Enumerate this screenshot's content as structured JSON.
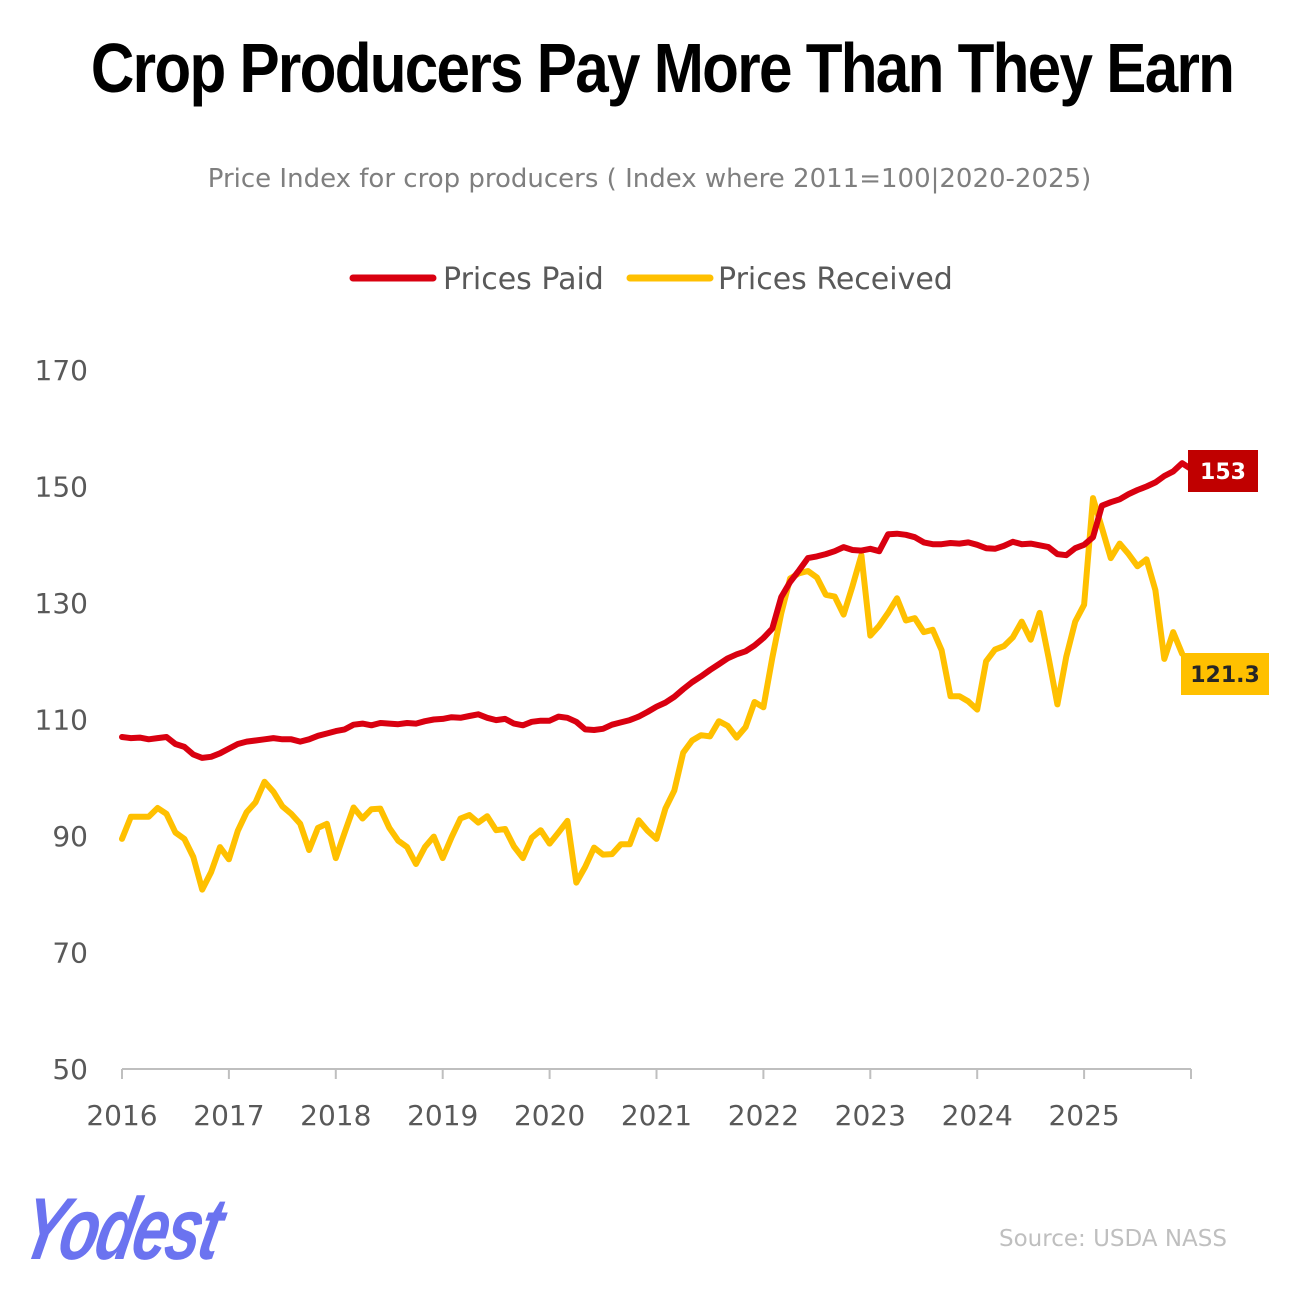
{
  "chart_data": {
    "type": "line",
    "title": "Crop Producers Pay More Than They Earn",
    "subtitle": "Price Index for crop producers ( Index where 2011=100|2020-2025)",
    "x_tick_labels": [
      "2016",
      "2017",
      "2018",
      "2019",
      "2020",
      "2021",
      "2022",
      "2023",
      "2024",
      "2025"
    ],
    "y_tick_labels": [
      "50",
      "70",
      "90",
      "110",
      "130",
      "150",
      "170"
    ],
    "ylim": [
      50,
      170
    ],
    "x_start_year": 2016,
    "x_end_year": 2026,
    "grid": false,
    "legend_position": "top-center",
    "series": [
      {
        "name": "Prices Paid",
        "color": "#d90010",
        "end_label": "153",
        "end_label_bg": "#c00000",
        "end_label_color": "#ffffff",
        "values": [
          107.0,
          106.8,
          106.9,
          106.6,
          106.8,
          107.0,
          105.8,
          105.3,
          104.0,
          103.4,
          103.6,
          104.2,
          105.0,
          105.8,
          106.2,
          106.4,
          106.6,
          106.8,
          106.6,
          106.6,
          106.2,
          106.6,
          107.2,
          107.6,
          108.0,
          108.3,
          109.1,
          109.3,
          109.0,
          109.4,
          109.3,
          109.2,
          109.4,
          109.3,
          109.7,
          110.0,
          110.1,
          110.4,
          110.3,
          110.6,
          110.9,
          110.3,
          109.9,
          110.1,
          109.3,
          109.0,
          109.6,
          109.8,
          109.8,
          110.5,
          110.3,
          109.6,
          108.3,
          108.2,
          108.4,
          109.1,
          109.5,
          109.9,
          110.5,
          111.3,
          112.2,
          112.9,
          113.9,
          115.2,
          116.4,
          117.4,
          118.5,
          119.5,
          120.5,
          121.2,
          121.7,
          122.7,
          124.0,
          125.6,
          131.0,
          133.6,
          135.6,
          137.7,
          138.0,
          138.4,
          138.9,
          139.6,
          139.1,
          139.0,
          139.3,
          138.9,
          141.8,
          141.9,
          141.7,
          141.3,
          140.4,
          140.1,
          140.1,
          140.3,
          140.2,
          140.4,
          140.0,
          139.4,
          139.3,
          139.8,
          140.5,
          140.1,
          140.2,
          139.9,
          139.6,
          138.4,
          138.2,
          139.4,
          140.0,
          141.3,
          146.7,
          147.3,
          147.8,
          148.7,
          149.4,
          150.0,
          150.7,
          151.8,
          152.6,
          154.0,
          153.0,
          153.0
        ]
      },
      {
        "name": "Prices Received",
        "color": "#ffc000",
        "end_label": "121.3",
        "end_label_bg": "#ffc000",
        "end_label_color": "#262626",
        "values": [
          89.5,
          93.3,
          93.3,
          93.3,
          94.8,
          93.8,
          90.6,
          89.5,
          86.4,
          80.8,
          83.8,
          88.1,
          86.0,
          90.9,
          94.1,
          95.8,
          99.3,
          97.6,
          95.1,
          93.8,
          92.1,
          87.6,
          91.4,
          92.1,
          86.2,
          90.6,
          94.9,
          93.0,
          94.6,
          94.7,
          91.4,
          89.2,
          88.1,
          85.2,
          88.1,
          89.9,
          86.2,
          89.8,
          93.0,
          93.6,
          92.3,
          93.4,
          91.0,
          91.2,
          88.2,
          86.2,
          89.7,
          91.0,
          88.7,
          90.6,
          92.6,
          82.0,
          84.7,
          88.0,
          86.8,
          86.9,
          88.6,
          88.6,
          92.7,
          90.9,
          89.5,
          94.7,
          97.8,
          104.3,
          106.4,
          107.3,
          107.1,
          109.7,
          108.9,
          106.9,
          108.7,
          113.0,
          112.1,
          120.6,
          128.2,
          134.2,
          135.1,
          135.5,
          134.4,
          131.4,
          131.1,
          128.0,
          132.9,
          138.2,
          124.4,
          126.1,
          128.3,
          130.8,
          127.0,
          127.4,
          125.0,
          125.4,
          121.9,
          114.0,
          114.0,
          113.1,
          111.7,
          120.0,
          122.0,
          122.6,
          124.1,
          126.8,
          123.7,
          128.3,
          120.7,
          112.6,
          120.8,
          126.8,
          129.7,
          148.0,
          142.9,
          137.7,
          140.2,
          138.4,
          136.3,
          137.5,
          132.2,
          120.4,
          125.0,
          121.3
        ]
      }
    ]
  },
  "branding": {
    "logo_text": "Yodest"
  },
  "footer": {
    "source": "Source: USDA NASS"
  }
}
